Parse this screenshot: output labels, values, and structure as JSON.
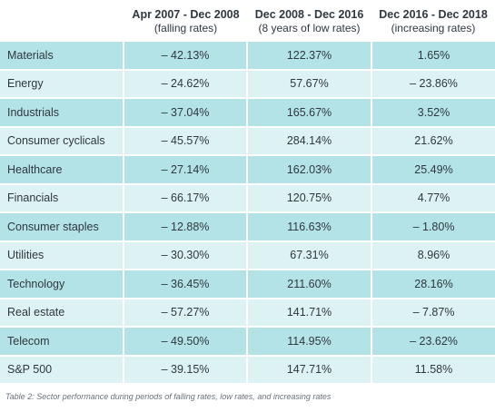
{
  "header": {
    "col1": {
      "title": "Apr 2007 - Dec 2008",
      "subtitle": "(falling rates)"
    },
    "col2": {
      "title": "Dec 2008 - Dec 2016",
      "subtitle": "(8 years of low rates)"
    },
    "col3": {
      "title": "Dec 2016 - Dec 2018",
      "subtitle": "(increasing rates)"
    }
  },
  "rows": [
    {
      "sector": "Materials",
      "falling": "– 42.13%",
      "low": "122.37%",
      "increasing": "1.65%"
    },
    {
      "sector": "Energy",
      "falling": "– 24.62%",
      "low": "57.67%",
      "increasing": "– 23.86%"
    },
    {
      "sector": "Industrials",
      "falling": "– 37.04%",
      "low": "165.67%",
      "increasing": "3.52%"
    },
    {
      "sector": "Consumer cyclicals",
      "falling": "– 45.57%",
      "low": "284.14%",
      "increasing": "21.62%"
    },
    {
      "sector": "Healthcare",
      "falling": "– 27.14%",
      "low": "162.03%",
      "increasing": "25.49%"
    },
    {
      "sector": "Financials",
      "falling": "– 66.17%",
      "low": "120.75%",
      "increasing": "4.77%"
    },
    {
      "sector": "Consumer staples",
      "falling": "– 12.88%",
      "low": "116.63%",
      "increasing": "– 1.80%"
    },
    {
      "sector": "Utilities",
      "falling": "– 30.30%",
      "low": "67.31%",
      "increasing": "8.96%"
    },
    {
      "sector": "Technology",
      "falling": "– 36.45%",
      "low": "211.60%",
      "increasing": "28.16%"
    },
    {
      "sector": "Real estate",
      "falling": "– 57.27%",
      "low": "141.71%",
      "increasing": "– 7.87%"
    },
    {
      "sector": "Telecom",
      "falling": "– 49.50%",
      "low": "114.95%",
      "increasing": "– 23.62%"
    },
    {
      "sector": "S&P 500",
      "falling": "– 39.15%",
      "low": "147.71%",
      "increasing": "11.58%"
    }
  ],
  "caption": "Table 2: Sector performance during periods of falling rates, low rates, and increasing rates",
  "colors": {
    "row_dark": "#b3e3e6",
    "row_light": "#ddf2f3",
    "text": "#2f3740"
  }
}
